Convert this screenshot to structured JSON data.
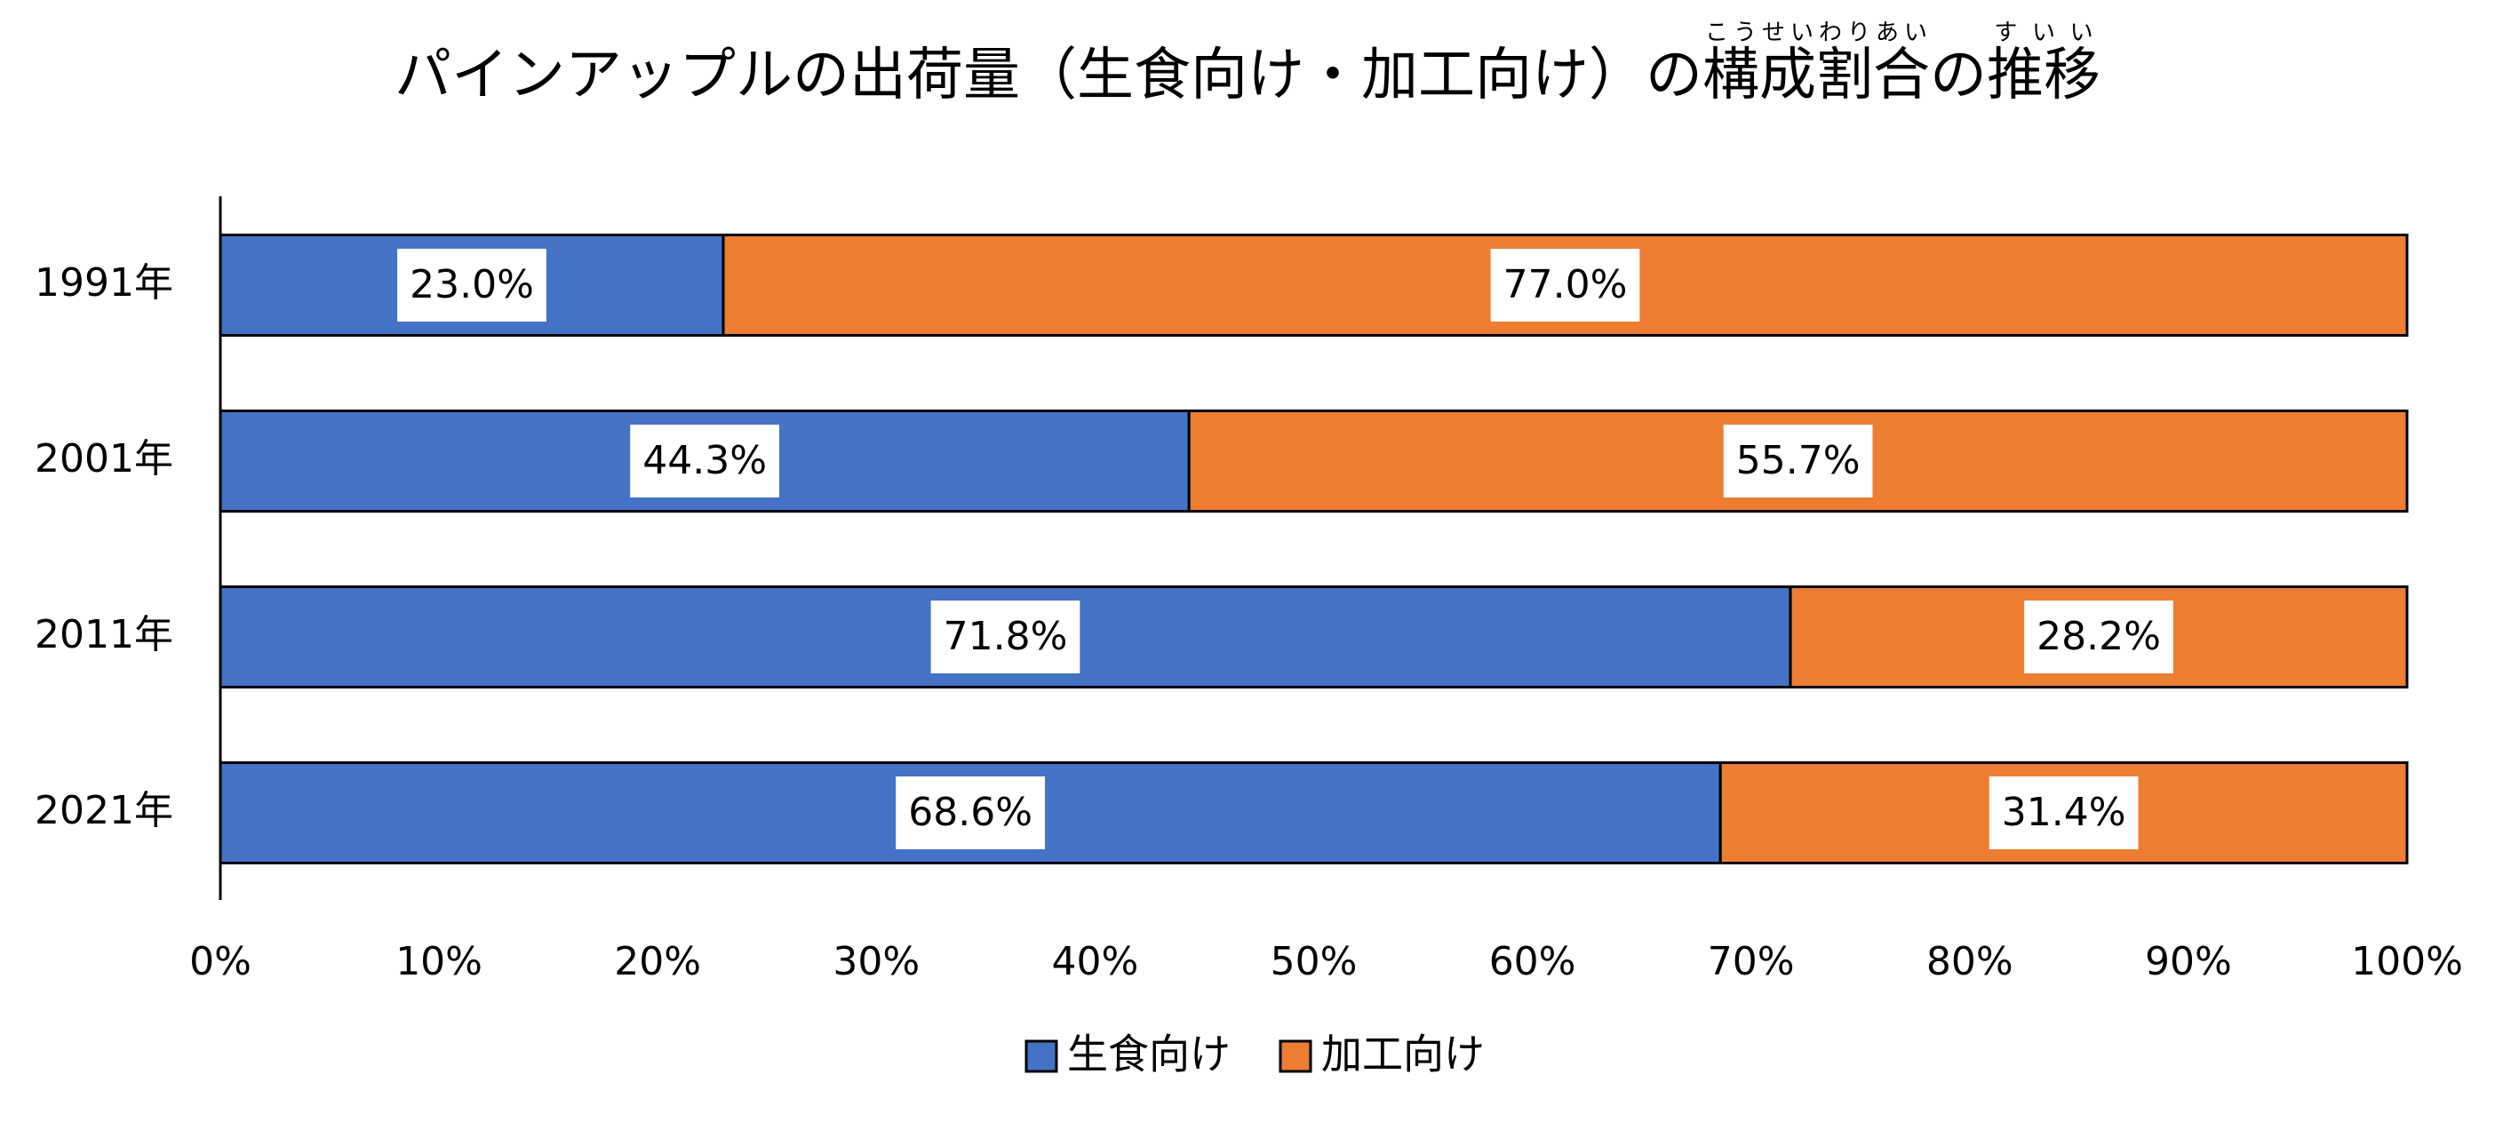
{
  "chart_data": {
    "type": "stacked-bar-horizontal",
    "title_parts": [
      {
        "text": "パインアップルの出荷量（生食向け・加工向け）の"
      },
      {
        "text": "構成割合",
        "ruby": "こうせいわりあい"
      },
      {
        "text": "の"
      },
      {
        "text": "推移",
        "ruby": "すいい"
      }
    ],
    "categories": [
      "1991年",
      "2001年",
      "2011年",
      "2021年"
    ],
    "series": [
      {
        "name": "生食向け",
        "color": "#4472c4",
        "values": [
          23.0,
          44.3,
          71.8,
          68.6
        ],
        "value_labels": [
          "23.0%",
          "44.3%",
          "71.8%",
          "68.6%"
        ]
      },
      {
        "name": "加工向け",
        "color": "#ed7d31",
        "values": [
          77.0,
          55.7,
          28.2,
          31.4
        ],
        "value_labels": [
          "77.0%",
          "55.7%",
          "28.2%",
          "31.4%"
        ]
      }
    ],
    "xlim": [
      0,
      100
    ],
    "xticks": [
      {
        "value": 0,
        "label": "0%"
      },
      {
        "value": 10,
        "label": "10%"
      },
      {
        "value": 20,
        "label": "20%"
      },
      {
        "value": 30,
        "label": "30%"
      },
      {
        "value": 40,
        "label": "40%"
      },
      {
        "value": 50,
        "label": "50%"
      },
      {
        "value": 60,
        "label": "60%"
      },
      {
        "value": 70,
        "label": "70%"
      },
      {
        "value": 80,
        "label": "80%"
      },
      {
        "value": 90,
        "label": "90%"
      },
      {
        "value": 100,
        "label": "100%"
      }
    ],
    "legend": "bottom"
  }
}
